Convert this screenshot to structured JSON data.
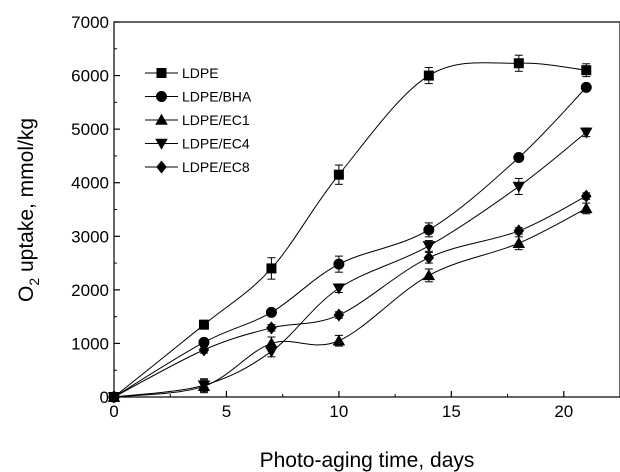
{
  "chart_data": {
    "type": "line",
    "title": "",
    "xlabel": "Photo-aging time, days",
    "ylabel_main": "O",
    "ylabel_sub": "2",
    "ylabel_rest": " uptake, mmol/kg",
    "xlim": [
      0,
      22.5
    ],
    "ylim": [
      0,
      7000
    ],
    "xticks": [
      0,
      5,
      10,
      15,
      20
    ],
    "yticks": [
      0,
      1000,
      2000,
      3000,
      4000,
      5000,
      6000,
      7000
    ],
    "xtick_labels": [
      "0",
      "5",
      "10",
      "15",
      "20"
    ],
    "ytick_labels": [
      "0",
      "1000",
      "2000",
      "3000",
      "4000",
      "5000",
      "6000",
      "7000"
    ],
    "grid": false,
    "legend_position": "top-left",
    "series": [
      {
        "name": "LDPE",
        "marker": "square",
        "x": [
          0,
          4,
          7,
          10,
          14,
          18,
          21
        ],
        "y": [
          0,
          1350,
          2400,
          4150,
          6000,
          6230,
          6100
        ],
        "err": [
          0,
          80,
          200,
          180,
          150,
          150,
          120
        ]
      },
      {
        "name": "LDPE/BHA",
        "marker": "circle",
        "x": [
          0,
          4,
          7,
          10,
          14,
          18,
          21
        ],
        "y": [
          0,
          1020,
          1580,
          2480,
          3120,
          4470,
          5780
        ],
        "err": [
          0,
          60,
          60,
          150,
          130,
          60,
          60
        ]
      },
      {
        "name": "LDPE/EC1",
        "marker": "triangle-up",
        "x": [
          0,
          4,
          7,
          10,
          14,
          18,
          21
        ],
        "y": [
          0,
          200,
          1000,
          1050,
          2270,
          2870,
          3520
        ],
        "err": [
          0,
          120,
          120,
          100,
          120,
          120,
          100
        ]
      },
      {
        "name": "LDPE/EC4",
        "marker": "triangle-down",
        "x": [
          0,
          4,
          7,
          10,
          14,
          18,
          21
        ],
        "y": [
          0,
          220,
          850,
          2030,
          2820,
          3930,
          4940
        ],
        "err": [
          0,
          120,
          100,
          80,
          100,
          150,
          80
        ]
      },
      {
        "name": "LDPE/EC8",
        "marker": "diamond",
        "x": [
          0,
          4,
          7,
          10,
          14,
          18,
          21
        ],
        "y": [
          0,
          880,
          1290,
          1530,
          2600,
          3100,
          3750
        ],
        "err": [
          0,
          60,
          60,
          60,
          100,
          60,
          60
        ]
      }
    ]
  }
}
